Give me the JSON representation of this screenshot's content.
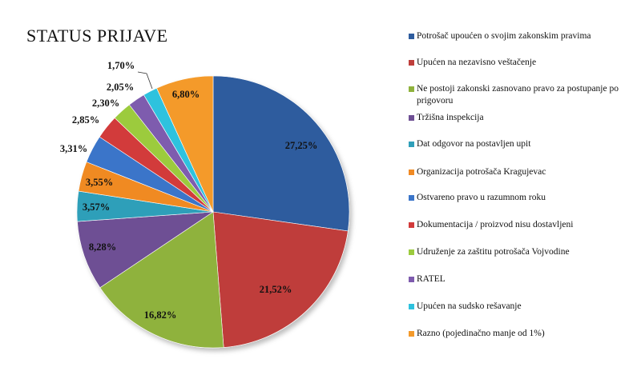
{
  "chart_data": {
    "type": "pie",
    "title": "STATUS PRIJAVE",
    "legend_position": "right",
    "slices": [
      {
        "label": "Potrošač upoućen o svojim zakonskim pravima",
        "value": 27.25,
        "value_label": "27,25%",
        "color": "#2E5C9E"
      },
      {
        "label": "Upućen na nezavisno veštačenje",
        "value": 21.52,
        "value_label": "21,52%",
        "color": "#BF3E3B"
      },
      {
        "label": "Ne postoji zakonski zasnovano pravo za postupanje po prigovoru",
        "value": 16.82,
        "value_label": "16,82%",
        "color": "#8FB23C"
      },
      {
        "label": "Tržišna inspekcija",
        "value": 8.28,
        "value_label": "8,28%",
        "color": "#6E4F94"
      },
      {
        "label": "Dat odgovor na postavljen upit",
        "value": 3.57,
        "value_label": "3,57%",
        "color": "#2F9FB9"
      },
      {
        "label": "Organizacija potrošača Kragujevac",
        "value": 3.55,
        "value_label": "3,55%",
        "color": "#F08A24"
      },
      {
        "label": "Ostvareno pravo u razumnom roku",
        "value": 3.31,
        "value_label": "3,31%",
        "color": "#3B75C9"
      },
      {
        "label": "Dokumentacija / proizvod nisu dostavljeni",
        "value": 2.85,
        "value_label": "2,85%",
        "color": "#D23A3A"
      },
      {
        "label": "Udruženje za zaštitu potrošača Vojvodine",
        "value": 2.3,
        "value_label": "2,30%",
        "color": "#9CCB3E"
      },
      {
        "label": "RATEL",
        "value": 2.05,
        "value_label": "2,05%",
        "color": "#7E5BAE"
      },
      {
        "label": "Upućen na sudsko rešavanje",
        "value": 1.7,
        "value_label": "1,70%",
        "color": "#2EC2DE"
      },
      {
        "label": "Razno (pojedinačno manje od 1%)",
        "value": 6.8,
        "value_label": "6,80%",
        "color": "#F49A2B"
      }
    ]
  }
}
